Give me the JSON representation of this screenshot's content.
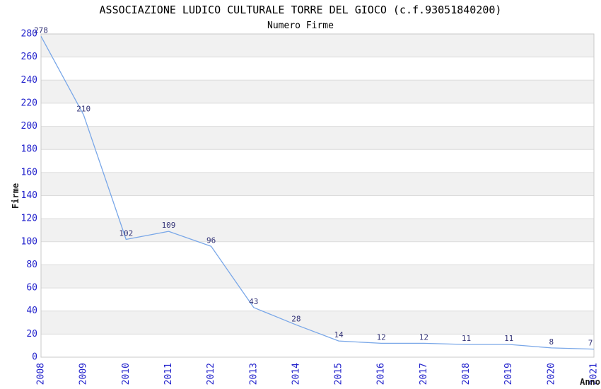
{
  "chart_data": {
    "type": "line",
    "title": "ASSOCIAZIONE LUDICO CULTURALE TORRE DEL GIOCO (c.f.93051840200)",
    "subtitle": "Numero Firme",
    "xlabel": "Anno",
    "ylabel": "Firme",
    "categories": [
      "2008",
      "2009",
      "2010",
      "2011",
      "2012",
      "2013",
      "2014",
      "2015",
      "2016",
      "2017",
      "2018",
      "2019",
      "2020",
      "2021"
    ],
    "series": [
      {
        "name": "Numero Firme",
        "values": [
          278,
          210,
          102,
          109,
          96,
          43,
          28,
          14,
          12,
          12,
          11,
          11,
          8,
          7
        ]
      }
    ],
    "data_labels": [
      "278",
      "210",
      "102",
      "109",
      "96",
      "43",
      "28",
      "14",
      "12",
      "12",
      "11",
      "11",
      "8",
      "7"
    ],
    "ylim": [
      0,
      280
    ],
    "ytick_step": 20,
    "yticks": [
      0,
      20,
      40,
      60,
      80,
      100,
      120,
      140,
      160,
      180,
      200,
      220,
      240,
      260,
      280
    ],
    "grid": "horizontal-alternating-bands",
    "legend_position": "none",
    "colors": {
      "line": "#79a7e8",
      "tick_label": "#2222cc",
      "data_label": "#333377",
      "band": "#f1f1f1",
      "gridline": "#dcdcdc",
      "plot_border": "#c9c9c9",
      "background": "#ffffff",
      "text": "#000000"
    }
  }
}
